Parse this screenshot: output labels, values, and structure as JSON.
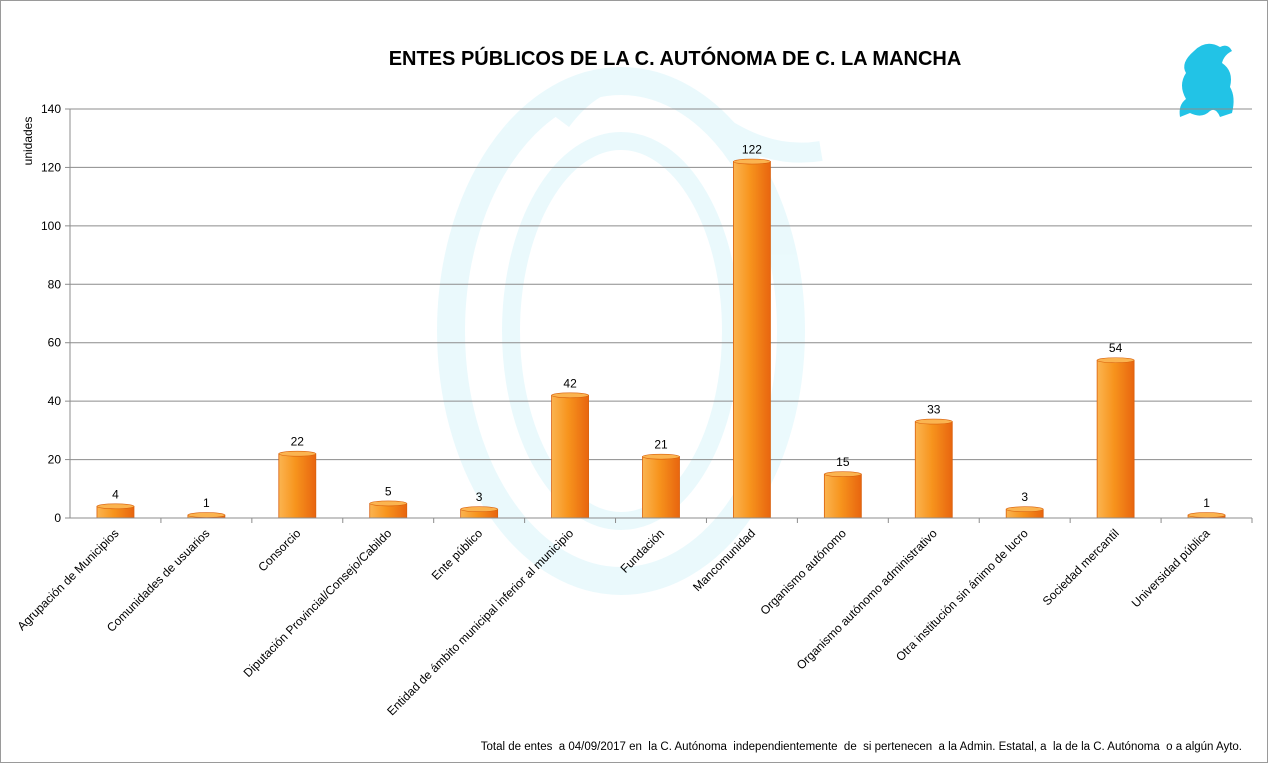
{
  "chart_data": {
    "type": "bar",
    "title": "ENTES PÚBLICOS DE LA C. AUTÓNOMA DE C. LA MANCHA",
    "ylabel": "unidades",
    "xlabel": "",
    "ylim": [
      0,
      140
    ],
    "yticks": [
      0,
      20,
      40,
      60,
      80,
      100,
      120,
      140
    ],
    "grid": true,
    "legend": "none",
    "bar_color": "#f7941d",
    "bar_color_light": "#fbb450",
    "bar_color_dark": "#e8650f",
    "logo_color": "#22c3e6",
    "categories": [
      "Agrupación de Municipios",
      "Comunidades de usuarios",
      "Consorcio",
      "Diputación Provincial/Consejo/Cabildo",
      "Ente público",
      "Entidad de ámbito municipal inferior al municipio",
      "Fundación",
      "Mancomunidad",
      "Organismo autónomo",
      "Organismo autónomo administrativo",
      "Otra institución sin ánimo de lucro",
      "Sociedad mercantil",
      "Universidad pública"
    ],
    "values": [
      4,
      1,
      22,
      5,
      3,
      42,
      21,
      122,
      15,
      33,
      3,
      54,
      1
    ],
    "footnote": "Total de entes  a 04/09/2017 en  la C. Autónoma  independientemente  de  si pertenecen  a la Admin. Estatal, a  la de la C. Autónoma  o a algún Ayto."
  }
}
